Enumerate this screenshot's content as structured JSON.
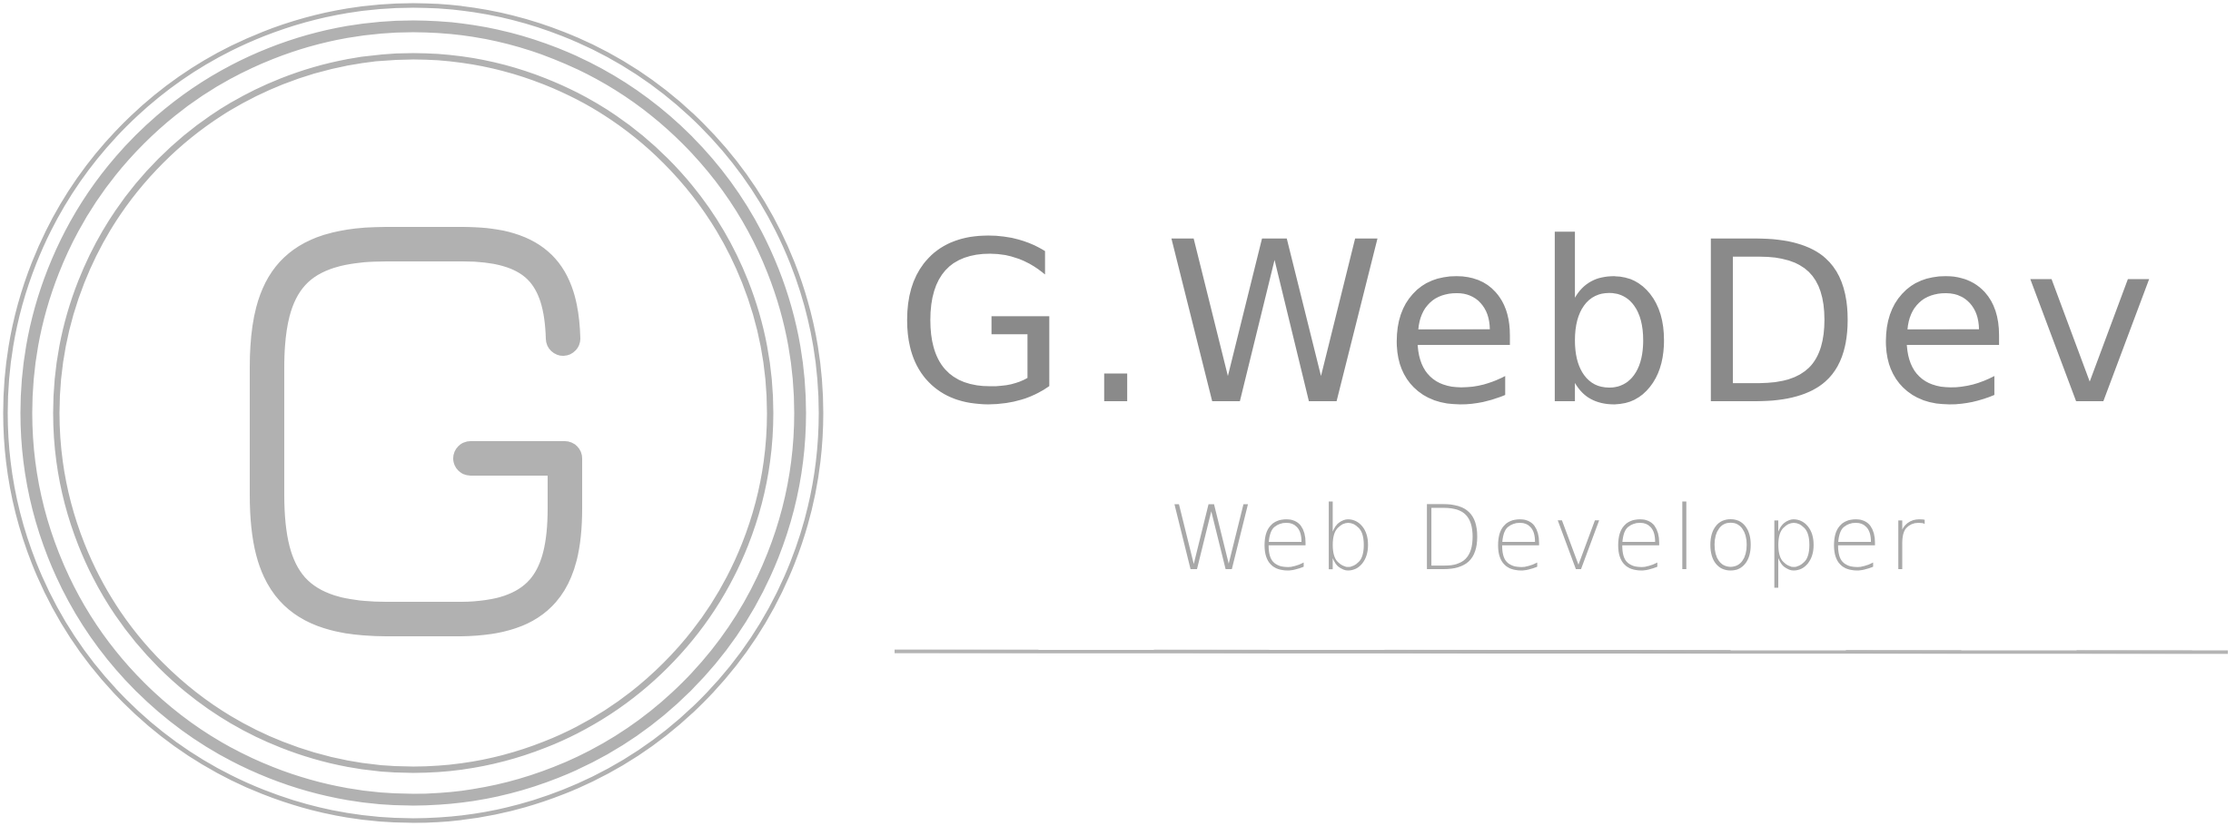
{
  "brand": {
    "emblem_letter": "G",
    "name": "G.WebDev",
    "tagline": "Web Developer"
  },
  "colors": {
    "emblem": "#b1b1b1",
    "name": "#8a8a8a",
    "tagline": "#a8a8a8",
    "divider": "#b4b4b4",
    "background": "#ffffff"
  },
  "icons": {
    "emblem": "g-monogram-ring-icon"
  }
}
